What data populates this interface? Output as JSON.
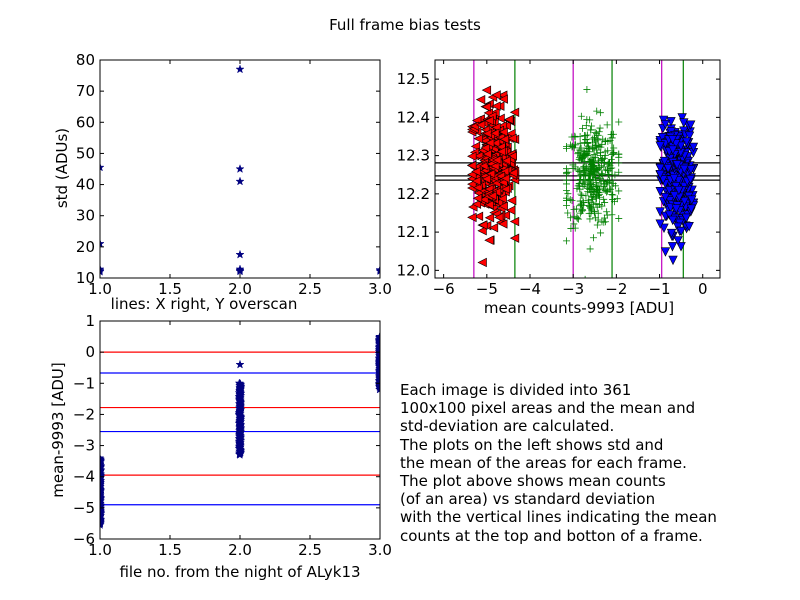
{
  "chart_data": [
    {
      "type": "scatter",
      "panel": "top-left",
      "title": "",
      "xlabel": "lines: X right, Y overscan",
      "ylabel": "std (ADUs)",
      "xlim": [
        1.0,
        3.0
      ],
      "ylim": [
        10,
        80
      ],
      "xticks": [
        "1.0",
        "1.5",
        "2.0",
        "2.5",
        "3.0"
      ],
      "yticks": [
        "10",
        "20",
        "30",
        "40",
        "50",
        "60",
        "70",
        "80"
      ],
      "marker": "star",
      "color": "#000080",
      "points": [
        {
          "x": 1.0,
          "y": 45.5
        },
        {
          "x": 1.0,
          "y": 21.0
        },
        {
          "x": 1.0,
          "y": 12.8
        },
        {
          "x": 1.0,
          "y": 12.3
        },
        {
          "x": 1.0,
          "y": 12.0
        },
        {
          "x": 2.0,
          "y": 77.0
        },
        {
          "x": 2.0,
          "y": 45.0
        },
        {
          "x": 2.0,
          "y": 41.0
        },
        {
          "x": 2.0,
          "y": 17.5
        },
        {
          "x": 2.0,
          "y": 12.8
        },
        {
          "x": 2.0,
          "y": 12.4
        },
        {
          "x": 2.0,
          "y": 12.1
        },
        {
          "x": 3.0,
          "y": 12.6
        },
        {
          "x": 3.0,
          "y": 12.2
        }
      ]
    },
    {
      "type": "scatter",
      "panel": "top-right",
      "title": "",
      "xlabel": "mean counts-9993 [ADU]",
      "ylabel": "",
      "xlim": [
        -6.2,
        0.4
      ],
      "ylim": [
        11.98,
        12.55
      ],
      "xticks": [
        "−6",
        "−5",
        "−4",
        "−3",
        "−2",
        "−1",
        "0"
      ],
      "yticks": [
        "12.0",
        "12.1",
        "12.2",
        "12.3",
        "12.4",
        "12.5"
      ],
      "series": [
        {
          "marker": "triangle-left",
          "color": "#ff0000",
          "x_mean": -4.85,
          "x_spread": 0.45,
          "y_mean": 12.28,
          "y_spread": 0.09,
          "n": 361
        },
        {
          "marker": "plus",
          "color": "#008000",
          "x_mean": -2.55,
          "x_spread": 0.55,
          "y_mean": 12.25,
          "y_spread": 0.08,
          "n": 361
        },
        {
          "marker": "triangle-down",
          "color": "#0000ff",
          "x_mean": -0.6,
          "x_spread": 0.35,
          "y_mean": 12.24,
          "y_spread": 0.08,
          "n": 361
        }
      ],
      "vlines": [
        {
          "x": -5.3,
          "color": "#bf00bf"
        },
        {
          "x": -4.35,
          "color": "#008000"
        },
        {
          "x": -3.0,
          "color": "#bf00bf"
        },
        {
          "x": -2.1,
          "color": "#008000"
        },
        {
          "x": -0.95,
          "color": "#bf00bf"
        },
        {
          "x": -0.45,
          "color": "#008000"
        }
      ],
      "hlines": [
        {
          "y": 12.281,
          "color": "#000000"
        },
        {
          "y": 12.247,
          "color": "#000000"
        },
        {
          "y": 12.236,
          "color": "#000000"
        }
      ]
    },
    {
      "type": "scatter",
      "panel": "bottom-left",
      "title": "",
      "xlabel": "file no. from the night of ALyk13",
      "ylabel": "mean-9993 [ADU]",
      "xlim": [
        1.0,
        3.0
      ],
      "ylim": [
        -6,
        1
      ],
      "xticks": [
        "1.0",
        "1.5",
        "2.0",
        "2.5",
        "3.0"
      ],
      "yticks": [
        "−6",
        "−5",
        "−4",
        "−3",
        "−2",
        "−1",
        "0",
        "1"
      ],
      "marker": "star",
      "color": "#000080",
      "columns": [
        {
          "x": 1.0,
          "y_min": -5.55,
          "y_max": -3.4,
          "n": 120
        },
        {
          "x": 2.0,
          "y_min": -3.3,
          "y_max": -1.0,
          "n": 120
        },
        {
          "x": 3.0,
          "y_min": -1.2,
          "y_max": 0.5,
          "n": 120
        }
      ],
      "extra_points": [
        {
          "x": 2.0,
          "y": -0.4
        }
      ],
      "hlines": [
        {
          "y": 0.0,
          "color": "#ff0000"
        },
        {
          "y": -0.67,
          "color": "#0000ff"
        },
        {
          "y": -1.78,
          "color": "#ff0000"
        },
        {
          "y": -2.55,
          "color": "#0000ff"
        },
        {
          "y": -3.95,
          "color": "#ff0000"
        },
        {
          "y": -4.9,
          "color": "#0000ff"
        }
      ]
    }
  ],
  "figure": {
    "suptitle": "Full frame bias tests",
    "note_lines": [
      "Each image is divided into 361",
      "100x100 pixel areas and the mean and",
      "std-deviation are calculated.",
      "The plots on the left shows std and",
      "the mean of the areas for each frame.",
      "The plot above shows mean counts",
      "(of an area) vs standard deviation",
      "with the vertical lines indicating the mean",
      "counts at the top and botton of a frame."
    ]
  }
}
